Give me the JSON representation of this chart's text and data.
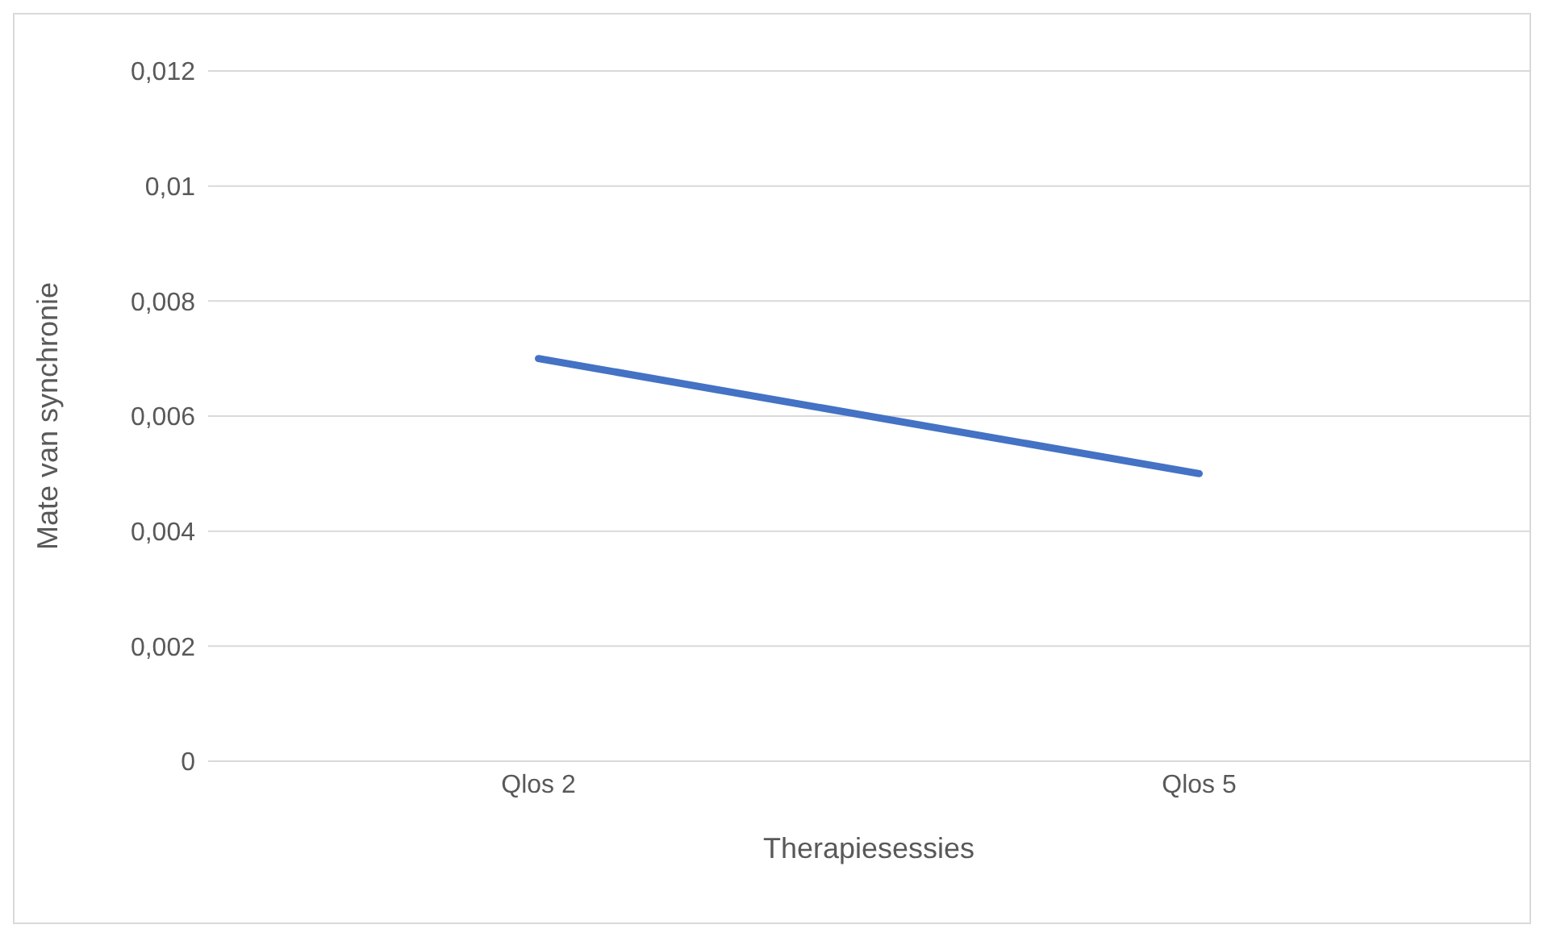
{
  "chart_data": {
    "type": "line",
    "xlabel": "Therapiesessies",
    "ylabel": "Mate van synchronie",
    "categories": [
      "Qlos 2",
      "Qlos 5"
    ],
    "series": [
      {
        "color": "#4472c4",
        "values": [
          0.007,
          0.005
        ]
      }
    ],
    "ylim": [
      0,
      0.012
    ],
    "yticks": [
      0,
      {
        "value": 0.002,
        "label": "0,002"
      },
      {
        "value": 0.004,
        "label": "0,004"
      },
      {
        "value": 0.006,
        "label": "0,006"
      },
      {
        "value": 0.008,
        "label": "0,008"
      },
      {
        "value": 0.01,
        "label": "0,01"
      },
      {
        "value": 0.012,
        "label": "0,012"
      }
    ],
    "grid": "y",
    "legend": false,
    "marker": "none",
    "line_style": "solid"
  }
}
